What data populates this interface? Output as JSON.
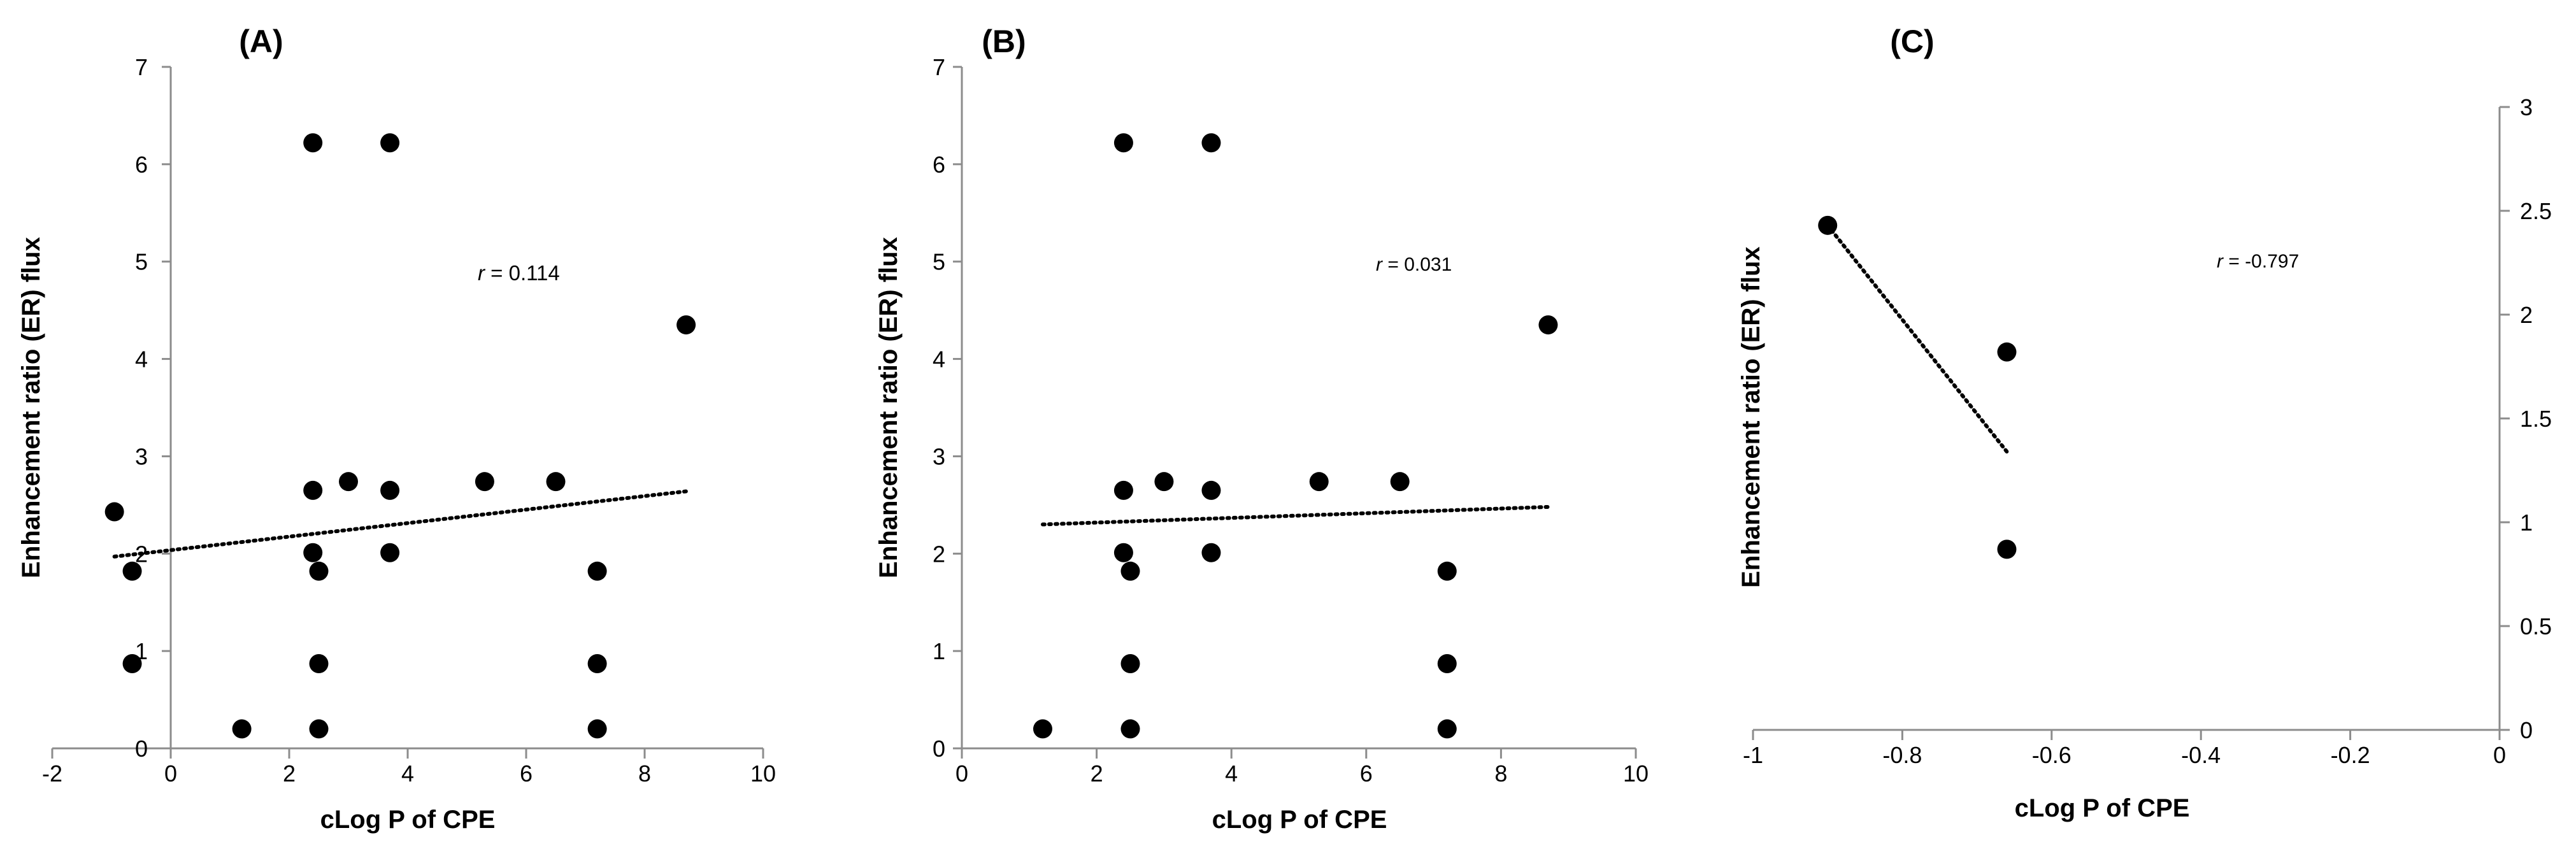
{
  "chart_data": [
    {
      "type": "scatter",
      "panel": "(A)",
      "title": "(A)",
      "xlabel": "cLog P of CPE",
      "ylabel": "Enhancement ratio (ER) flux",
      "xlim": [
        -2,
        10
      ],
      "ylim": [
        0,
        7
      ],
      "xticks": [
        -2,
        0,
        2,
        4,
        6,
        8,
        10
      ],
      "yticks": [
        0,
        1,
        2,
        3,
        4,
        5,
        6,
        7
      ],
      "grid": false,
      "y_axis_side": "left",
      "annotation": {
        "prefix": "r",
        "value": "= 0.114"
      },
      "points": [
        {
          "x": -0.95,
          "y": 2.43
        },
        {
          "x": -0.65,
          "y": 1.82
        },
        {
          "x": -0.65,
          "y": 0.87
        },
        {
          "x": 1.2,
          "y": 0.2
        },
        {
          "x": 2.4,
          "y": 6.22
        },
        {
          "x": 2.4,
          "y": 2.65
        },
        {
          "x": 2.4,
          "y": 2.01
        },
        {
          "x": 2.5,
          "y": 1.82
        },
        {
          "x": 2.5,
          "y": 0.87
        },
        {
          "x": 2.5,
          "y": 0.2
        },
        {
          "x": 3.0,
          "y": 2.74
        },
        {
          "x": 3.7,
          "y": 6.22
        },
        {
          "x": 3.7,
          "y": 2.65
        },
        {
          "x": 3.7,
          "y": 2.01
        },
        {
          "x": 5.3,
          "y": 2.74
        },
        {
          "x": 6.5,
          "y": 2.74
        },
        {
          "x": 7.2,
          "y": 1.82
        },
        {
          "x": 7.2,
          "y": 0.87
        },
        {
          "x": 7.2,
          "y": 0.2
        },
        {
          "x": 8.7,
          "y": 4.35
        }
      ],
      "trendline": {
        "x": [
          -0.95,
          8.7
        ],
        "y": [
          1.97,
          2.64
        ]
      }
    },
    {
      "type": "scatter",
      "panel": "(B)",
      "title": "(B)",
      "xlabel": "cLog P of CPE",
      "ylabel": "Enhancement ratio (ER) flux",
      "xlim": [
        0,
        10
      ],
      "ylim": [
        0,
        7
      ],
      "xticks": [
        0,
        2,
        4,
        6,
        8,
        10
      ],
      "yticks": [
        0,
        1,
        2,
        3,
        4,
        5,
        6,
        7
      ],
      "grid": false,
      "y_axis_side": "left",
      "annotation": {
        "prefix": "r",
        "value": "= 0.031"
      },
      "points": [
        {
          "x": 1.2,
          "y": 0.2
        },
        {
          "x": 2.4,
          "y": 6.22
        },
        {
          "x": 2.4,
          "y": 2.65
        },
        {
          "x": 2.4,
          "y": 2.01
        },
        {
          "x": 2.5,
          "y": 1.82
        },
        {
          "x": 2.5,
          "y": 0.87
        },
        {
          "x": 2.5,
          "y": 0.2
        },
        {
          "x": 3.0,
          "y": 2.74
        },
        {
          "x": 3.7,
          "y": 6.22
        },
        {
          "x": 3.7,
          "y": 2.65
        },
        {
          "x": 3.7,
          "y": 2.01
        },
        {
          "x": 5.3,
          "y": 2.74
        },
        {
          "x": 6.5,
          "y": 2.74
        },
        {
          "x": 7.2,
          "y": 1.82
        },
        {
          "x": 7.2,
          "y": 0.87
        },
        {
          "x": 7.2,
          "y": 0.2
        },
        {
          "x": 8.7,
          "y": 4.35
        }
      ],
      "trendline": {
        "x": [
          1.2,
          8.7
        ],
        "y": [
          2.3,
          2.48
        ]
      }
    },
    {
      "type": "scatter",
      "panel": "(C)",
      "title": "(C)",
      "xlabel": "cLog P of CPE",
      "ylabel": "Enhancement ratio (ER) flux",
      "xlim": [
        -1,
        0
      ],
      "ylim": [
        0,
        3
      ],
      "xticks": [
        -1,
        -0.8,
        -0.6,
        -0.4,
        -0.2,
        0
      ],
      "yticks": [
        0,
        0.5,
        1,
        1.5,
        2,
        2.5,
        3
      ],
      "grid": false,
      "y_axis_side": "right",
      "annotation": {
        "prefix": "r",
        "value": "= -0.797"
      },
      "points": [
        {
          "x": -0.9,
          "y": 2.43
        },
        {
          "x": -0.66,
          "y": 1.82
        },
        {
          "x": -0.66,
          "y": 0.87
        }
      ],
      "trendline": {
        "x": [
          -0.9,
          -0.66
        ],
        "y": [
          2.43,
          1.34
        ]
      }
    }
  ]
}
